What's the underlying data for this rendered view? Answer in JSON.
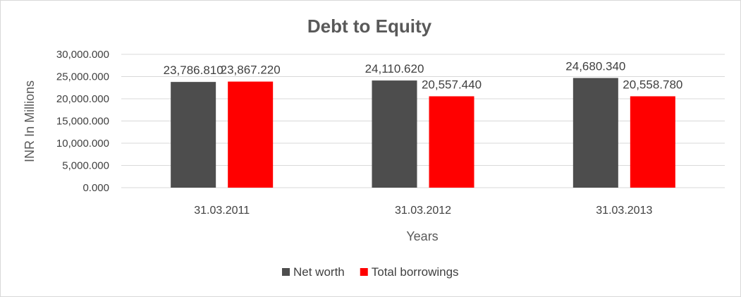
{
  "chart_data": {
    "type": "bar",
    "title": "Debt to Equity",
    "xlabel": "Years",
    "ylabel": "INR In Millions",
    "categories": [
      "31.03.2011",
      "31.03.2012",
      "31.03.2013"
    ],
    "series": [
      {
        "name": "Net worth",
        "color": "#4d4d4d",
        "values": [
          23786.81,
          24110.62,
          24680.34
        ],
        "labels": [
          "23,786.810",
          "24,110.620",
          "24,680.340"
        ]
      },
      {
        "name": "Total borrowings",
        "color": "#ff0000",
        "values": [
          23867.22,
          20557.44,
          20558.78
        ],
        "labels": [
          "23,867.220",
          "20,557.440",
          "20,558.780"
        ]
      }
    ],
    "ylim": [
      0,
      30000
    ],
    "yticks": [
      0,
      5000,
      10000,
      15000,
      20000,
      25000,
      30000
    ],
    "ytick_labels": [
      "0.000",
      "5,000.000",
      "10,000.000",
      "15,000.000",
      "20,000.000",
      "25,000.000",
      "30,000.000"
    ],
    "grid": true,
    "legend_position": "bottom"
  }
}
